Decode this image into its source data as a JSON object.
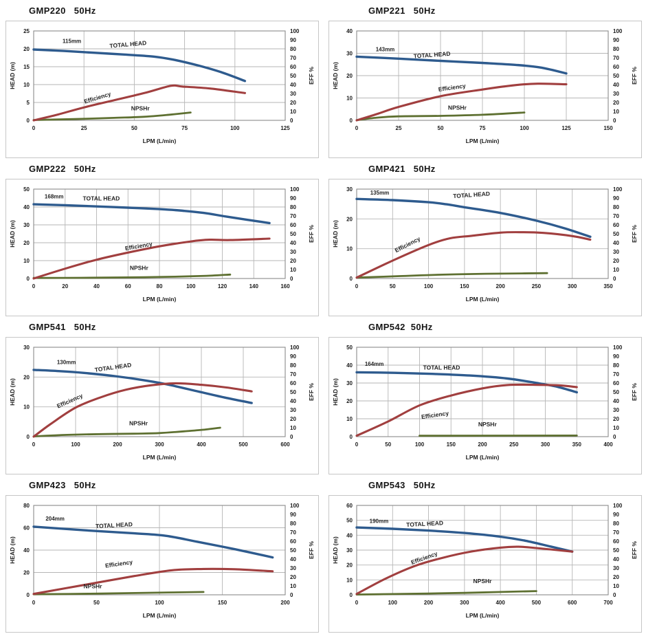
{
  "colors": {
    "head_curve": "#2e5b8e",
    "efficiency_curve": "#a13f3f",
    "npshr_curve": "#5e7031",
    "gridline": "#b6b6b6",
    "plot_border": "#8a8a8a",
    "panel_border": "#c6c6c6",
    "text": "#1a1a1a"
  },
  "chart_data": {
    "type": "line",
    "x_label": "LPM (L/min)",
    "y_left_label": "HEAD (m)",
    "y_right_label": "EFF %",
    "series_names": {
      "head": "TOTAL HEAD",
      "efficiency": "Efficiency",
      "npshr": "NPSHr"
    },
    "y_right_ticks": [
      0,
      10,
      20,
      30,
      40,
      50,
      60,
      70,
      80,
      90,
      100
    ],
    "charts": [
      {
        "title": "GMP220   50Hz",
        "impeller": "115mm",
        "x_max": 125,
        "x_ticks": [
          0,
          25,
          50,
          75,
          100,
          125
        ],
        "y_left_max": 25,
        "y_left_ticks": [
          0,
          5,
          10,
          15,
          20,
          25
        ],
        "head_m": [
          [
            0,
            19.8
          ],
          [
            15,
            19.4
          ],
          [
            30,
            18.9
          ],
          [
            45,
            18.4
          ],
          [
            60,
            17.8
          ],
          [
            70,
            16.9
          ],
          [
            82,
            15.3
          ],
          [
            93,
            13.5
          ],
          [
            105,
            11
          ]
        ],
        "efficiency_pct": [
          [
            0,
            0
          ],
          [
            12,
            6.5
          ],
          [
            25,
            14.5
          ],
          [
            40,
            22.5
          ],
          [
            55,
            30.5
          ],
          [
            68,
            38.5
          ],
          [
            74,
            37.8
          ],
          [
            88,
            35.5
          ],
          [
            105,
            30.5
          ]
        ],
        "npshr_m": [
          [
            0,
            0.1
          ],
          [
            20,
            0.35
          ],
          [
            40,
            0.7
          ],
          [
            55,
            1.0
          ],
          [
            68,
            1.6
          ],
          [
            78,
            2.2
          ]
        ],
        "labels": [
          {
            "series": "impeller",
            "x": 19,
            "y": 21.6,
            "rot": 0
          },
          {
            "series": "head",
            "x": 47,
            "y": 20.7,
            "rot": -5
          },
          {
            "series": "efficiency",
            "x": 32,
            "y": 5.8,
            "rot": -17
          },
          {
            "series": "npshr",
            "x": 53,
            "y": 2.8,
            "rot": 0
          }
        ]
      },
      {
        "title": "GMP221   50Hz",
        "impeller": "143mm",
        "x_max": 150,
        "x_ticks": [
          0,
          25,
          50,
          75,
          100,
          125,
          150
        ],
        "y_left_max": 40,
        "y_left_ticks": [
          0,
          10,
          20,
          30,
          40
        ],
        "head_m": [
          [
            0,
            28.5
          ],
          [
            25,
            27.6
          ],
          [
            50,
            26.6
          ],
          [
            75,
            25.7
          ],
          [
            95,
            24.8
          ],
          [
            110,
            23.6
          ],
          [
            125,
            21
          ]
        ],
        "efficiency_pct": [
          [
            0,
            0
          ],
          [
            12,
            7
          ],
          [
            25,
            15
          ],
          [
            50,
            27
          ],
          [
            75,
            34.5
          ],
          [
            95,
            39.5
          ],
          [
            108,
            41
          ],
          [
            125,
            40.3
          ]
        ],
        "npshr_m": [
          [
            0,
            0.1
          ],
          [
            12,
            1.2
          ],
          [
            25,
            1.8
          ],
          [
            50,
            2.0
          ],
          [
            75,
            2.5
          ],
          [
            100,
            3.5
          ]
        ],
        "labels": [
          {
            "series": "impeller",
            "x": 17,
            "y": 31,
            "rot": 0
          },
          {
            "series": "head",
            "x": 45,
            "y": 28.4,
            "rot": -4
          },
          {
            "series": "efficiency",
            "x": 57,
            "y": 13.8,
            "rot": -8
          },
          {
            "series": "npshr",
            "x": 60,
            "y": 4.8,
            "rot": 0
          }
        ]
      },
      {
        "title": "GMP222   50Hz",
        "impeller": "168mm",
        "x_max": 160,
        "x_ticks": [
          0,
          20,
          40,
          60,
          80,
          100,
          120,
          140,
          160
        ],
        "y_left_max": 50,
        "y_left_ticks": [
          0,
          10,
          20,
          30,
          40,
          50
        ],
        "head_m": [
          [
            0,
            41.5
          ],
          [
            20,
            41
          ],
          [
            40,
            40.3
          ],
          [
            60,
            39.6
          ],
          [
            80,
            38.8
          ],
          [
            95,
            37.9
          ],
          [
            108,
            36.7
          ],
          [
            125,
            34.3
          ],
          [
            150,
            31
          ]
        ],
        "efficiency_pct": [
          [
            0,
            0
          ],
          [
            20,
            11
          ],
          [
            40,
            21
          ],
          [
            60,
            29
          ],
          [
            80,
            36
          ],
          [
            100,
            41.5
          ],
          [
            112,
            43.4
          ],
          [
            125,
            43
          ],
          [
            150,
            44.6
          ]
        ],
        "npshr_m": [
          [
            0,
            0.3
          ],
          [
            30,
            0.4
          ],
          [
            60,
            0.6
          ],
          [
            90,
            1.0
          ],
          [
            110,
            1.5
          ],
          [
            125,
            2.2
          ]
        ],
        "labels": [
          {
            "series": "impeller",
            "x": 13,
            "y": 44.8,
            "rot": 0
          },
          {
            "series": "head",
            "x": 43,
            "y": 43.6,
            "rot": 0
          },
          {
            "series": "efficiency",
            "x": 67,
            "y": 17,
            "rot": -10
          },
          {
            "series": "npshr",
            "x": 67,
            "y": 4.8,
            "rot": 0
          }
        ]
      },
      {
        "title": "GMP421   50Hz",
        "impeller": "135mm",
        "x_max": 350,
        "x_ticks": [
          0,
          50,
          100,
          150,
          200,
          250,
          300,
          350
        ],
        "y_left_max": 30,
        "y_left_ticks": [
          0,
          10,
          20,
          30
        ],
        "head_m": [
          [
            0,
            26.7
          ],
          [
            50,
            26.3
          ],
          [
            100,
            25.6
          ],
          [
            125,
            24.9
          ],
          [
            150,
            23.9
          ],
          [
            200,
            22
          ],
          [
            250,
            19.4
          ],
          [
            290,
            16.8
          ],
          [
            325,
            14
          ]
        ],
        "efficiency_pct": [
          [
            0,
            1
          ],
          [
            50,
            20
          ],
          [
            100,
            37.5
          ],
          [
            130,
            45
          ],
          [
            160,
            47.8
          ],
          [
            200,
            51.3
          ],
          [
            230,
            51.8
          ],
          [
            260,
            51
          ],
          [
            300,
            47.5
          ],
          [
            325,
            43.5
          ]
        ],
        "npshr_m": [
          [
            0,
            0.3
          ],
          [
            60,
            0.8
          ],
          [
            120,
            1.3
          ],
          [
            180,
            1.6
          ],
          [
            230,
            1.7
          ],
          [
            265,
            1.8
          ]
        ],
        "labels": [
          {
            "series": "impeller",
            "x": 32,
            "y": 28.2,
            "rot": 0
          },
          {
            "series": "head",
            "x": 160,
            "y": 27.4,
            "rot": -4
          },
          {
            "series": "efficiency",
            "x": 72,
            "y": 10.8,
            "rot": -27
          }
        ]
      },
      {
        "title": "GMP541   50Hz",
        "impeller": "130mm",
        "x_max": 600,
        "x_ticks": [
          0,
          100,
          200,
          300,
          400,
          500,
          600
        ],
        "y_left_max": 30,
        "y_left_ticks": [
          0,
          10,
          20,
          30
        ],
        "head_m": [
          [
            0,
            22.4
          ],
          [
            60,
            22
          ],
          [
            120,
            21.4
          ],
          [
            200,
            20.2
          ],
          [
            260,
            19
          ],
          [
            320,
            17.5
          ],
          [
            400,
            14.9
          ],
          [
            460,
            13
          ],
          [
            520,
            11.3
          ]
        ],
        "efficiency_pct": [
          [
            0,
            0
          ],
          [
            40,
            14
          ],
          [
            100,
            32.5
          ],
          [
            160,
            44
          ],
          [
            220,
            52.5
          ],
          [
            280,
            57.5
          ],
          [
            340,
            59.7
          ],
          [
            400,
            58
          ],
          [
            460,
            55
          ],
          [
            520,
            50.7
          ]
        ],
        "npshr_m": [
          [
            0,
            0.1
          ],
          [
            80,
            0.6
          ],
          [
            160,
            0.85
          ],
          [
            240,
            1.0
          ],
          [
            300,
            1.2
          ],
          [
            360,
            1.8
          ],
          [
            410,
            2.4
          ],
          [
            445,
            3
          ]
        ],
        "labels": [
          {
            "series": "impeller",
            "x": 78,
            "y": 24.4,
            "rot": 0
          },
          {
            "series": "head",
            "x": 190,
            "y": 22.6,
            "rot": -8
          },
          {
            "series": "efficiency",
            "x": 88,
            "y": 11.4,
            "rot": -24
          },
          {
            "series": "npshr",
            "x": 250,
            "y": 3.8,
            "rot": 0
          }
        ]
      },
      {
        "title": "GMP542  50Hz",
        "impeller": "164mm",
        "x_max": 400,
        "x_ticks": [
          0,
          50,
          100,
          150,
          200,
          250,
          300,
          350,
          400
        ],
        "y_left_max": 50,
        "y_left_ticks": [
          0,
          10,
          20,
          30,
          40,
          50
        ],
        "head_m": [
          [
            0,
            36
          ],
          [
            60,
            35.7
          ],
          [
            120,
            35.1
          ],
          [
            180,
            34.2
          ],
          [
            240,
            32.5
          ],
          [
            290,
            29.8
          ],
          [
            320,
            27.8
          ],
          [
            350,
            24.8
          ]
        ],
        "efficiency_pct": [
          [
            0,
            1
          ],
          [
            50,
            17
          ],
          [
            100,
            35
          ],
          [
            150,
            46
          ],
          [
            200,
            54
          ],
          [
            240,
            57.8
          ],
          [
            280,
            58
          ],
          [
            320,
            57.5
          ],
          [
            350,
            55.4
          ]
        ],
        "npshr_m": [
          [
            100,
            0.5
          ],
          [
            350,
            0.6
          ]
        ],
        "labels": [
          {
            "series": "impeller",
            "x": 28,
            "y": 39.7,
            "rot": 0
          },
          {
            "series": "head",
            "x": 135,
            "y": 37.5,
            "rot": 0
          },
          {
            "series": "efficiency",
            "x": 125,
            "y": 11,
            "rot": -8
          },
          {
            "series": "npshr",
            "x": 208,
            "y": 5.8,
            "rot": 0
          }
        ]
      },
      {
        "title": "GMP423   50Hz",
        "impeller": "204mm",
        "x_max": 200,
        "x_ticks": [
          0,
          50,
          100,
          150,
          200
        ],
        "y_left_max": 80,
        "y_left_ticks": [
          0,
          20,
          40,
          60,
          80
        ],
        "head_m": [
          [
            0,
            61
          ],
          [
            40,
            57.8
          ],
          [
            80,
            55
          ],
          [
            105,
            52.8
          ],
          [
            130,
            47.5
          ],
          [
            160,
            40.8
          ],
          [
            190,
            33.5
          ]
        ],
        "efficiency_pct": [
          [
            0,
            1
          ],
          [
            40,
            11
          ],
          [
            80,
            21
          ],
          [
            110,
            27.5
          ],
          [
            135,
            28.9
          ],
          [
            160,
            28.6
          ],
          [
            190,
            26.3
          ]
        ],
        "npshr_m": [
          [
            0,
            0.5
          ],
          [
            45,
            1.0
          ],
          [
            90,
            1.8
          ],
          [
            135,
            2.5
          ]
        ],
        "labels": [
          {
            "series": "impeller",
            "x": 17,
            "y": 66.5,
            "rot": 0
          },
          {
            "series": "head",
            "x": 64,
            "y": 60.5,
            "rot": -3
          },
          {
            "series": "efficiency",
            "x": 68,
            "y": 26,
            "rot": -8
          },
          {
            "series": "npshr",
            "x": 47,
            "y": 5.8,
            "rot": 0
          }
        ]
      },
      {
        "title": "GMP543   50Hz",
        "impeller": "190mm",
        "x_max": 700,
        "x_ticks": [
          0,
          100,
          200,
          300,
          400,
          500,
          600,
          700
        ],
        "y_left_max": 60,
        "y_left_ticks": [
          0,
          10,
          20,
          30,
          40,
          50,
          60
        ],
        "head_m": [
          [
            0,
            45.2
          ],
          [
            100,
            44.3
          ],
          [
            200,
            43.1
          ],
          [
            300,
            41.5
          ],
          [
            400,
            39
          ],
          [
            470,
            36.3
          ],
          [
            540,
            32.4
          ],
          [
            600,
            29
          ]
        ],
        "efficiency_pct": [
          [
            0,
            1
          ],
          [
            80,
            18
          ],
          [
            160,
            32
          ],
          [
            240,
            41.5
          ],
          [
            320,
            48.5
          ],
          [
            400,
            52.8
          ],
          [
            450,
            53.8
          ],
          [
            500,
            52.3
          ],
          [
            600,
            48.3
          ]
        ],
        "npshr_m": [
          [
            0,
            0.2
          ],
          [
            100,
            0.5
          ],
          [
            200,
            0.9
          ],
          [
            300,
            1.3
          ],
          [
            400,
            1.9
          ],
          [
            500,
            2.5
          ]
        ],
        "labels": [
          {
            "series": "impeller",
            "x": 62,
            "y": 48.3,
            "rot": 0
          },
          {
            "series": "head",
            "x": 190,
            "y": 46.3,
            "rot": -3
          },
          {
            "series": "efficiency",
            "x": 190,
            "y": 23.5,
            "rot": -20
          },
          {
            "series": "npshr",
            "x": 350,
            "y": 7.8,
            "rot": 0
          }
        ]
      }
    ]
  }
}
